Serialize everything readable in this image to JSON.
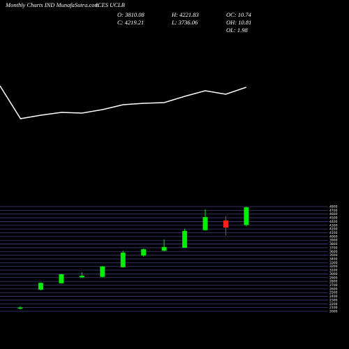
{
  "header": {
    "title": "Monthly Charts IND MunafaSutra.com",
    "symbol": "ICES UCLB",
    "stats": [
      "O: 3810.08",
      "C: 4219.21",
      "H: 4221.83",
      "L: 3736.06",
      "OC: 10.74",
      "OH: 10.81",
      "OL: 1.98"
    ]
  },
  "chart_data": [
    {
      "type": "line",
      "color": "#ffffff",
      "categories": [
        null,
        null,
        null,
        null,
        null,
        null,
        null,
        null,
        null,
        null,
        null,
        null,
        null
      ],
      "values": [
        77,
        30,
        35,
        39,
        38,
        43,
        50,
        52,
        53,
        62,
        70,
        65,
        75
      ],
      "ylim": [
        0,
        100
      ]
    },
    {
      "type": "candlestick",
      "up_color": "#00ee00",
      "down_color": "#ff2020",
      "grid": true,
      "categories": [
        null,
        null,
        null,
        null,
        null,
        null,
        null,
        null,
        null,
        null,
        null,
        null
      ],
      "open": [
        2070,
        2580,
        2750,
        2910,
        2920,
        3180,
        3490,
        3620,
        3700,
        4170,
        4430,
        4310
      ],
      "high": [
        2130,
        2770,
        3000,
        3040,
        3210,
        3620,
        3680,
        3920,
        4210,
        4730,
        4540,
        4800
      ],
      "low": [
        2050,
        2560,
        2740,
        2900,
        2910,
        3170,
        3460,
        3600,
        3700,
        4160,
        4030,
        4270
      ],
      "close": [
        2100,
        2760,
        2990,
        2950,
        3200,
        3570,
        3660,
        3720,
        4150,
        4520,
        4240,
        4780
      ],
      "ylim": [
        1950,
        4850
      ],
      "yticks": [
        2000,
        2100,
        2200,
        2300,
        2400,
        2500,
        2600,
        2700,
        2800,
        2900,
        3000,
        3100,
        3200,
        3300,
        3400,
        3500,
        3600,
        3700,
        3800,
        3900,
        4000,
        4100,
        4200,
        4300,
        4400,
        4500,
        4600,
        4700,
        4800
      ]
    }
  ]
}
